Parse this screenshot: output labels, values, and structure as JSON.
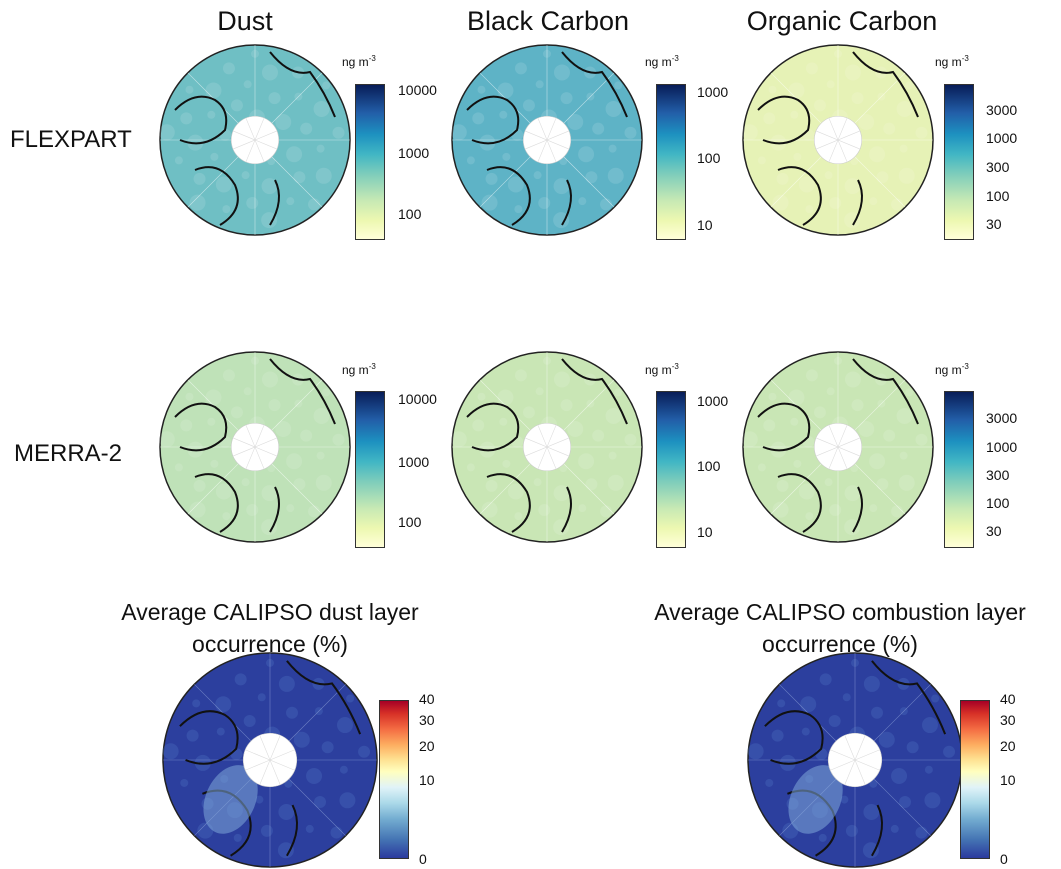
{
  "columns": [
    "Dust",
    "Black Carbon",
    "Organic Carbon"
  ],
  "rows": [
    "FLEXPART",
    "MERRA-2"
  ],
  "unit": {
    "base": "ng m",
    "exp": "-3"
  },
  "colorbars": {
    "dust": [
      "10000",
      "1000",
      "100"
    ],
    "black_carbon": [
      "1000",
      "100",
      "10"
    ],
    "organic_carbon": [
      "3000",
      "1000",
      "300",
      "100",
      "30"
    ],
    "calipso": [
      "40",
      "30",
      "20",
      "10",
      "0"
    ]
  },
  "calipso_titles": {
    "dust_line1": "Average CALIPSO dust layer",
    "dust_line2": "occurrence (%)",
    "comb_line1": "Average CALIPSO combustion layer",
    "comb_line2": "occurrence (%)"
  },
  "colors": {
    "dust_flexpart": "#6fbfc4",
    "bc_flexpart": "#5eb3c6",
    "oc_flexpart": "#e6f2b6",
    "merra": "#c9e6b5",
    "merra_dust": "#bfe2b8",
    "calipso": "#2c3f9e"
  }
}
